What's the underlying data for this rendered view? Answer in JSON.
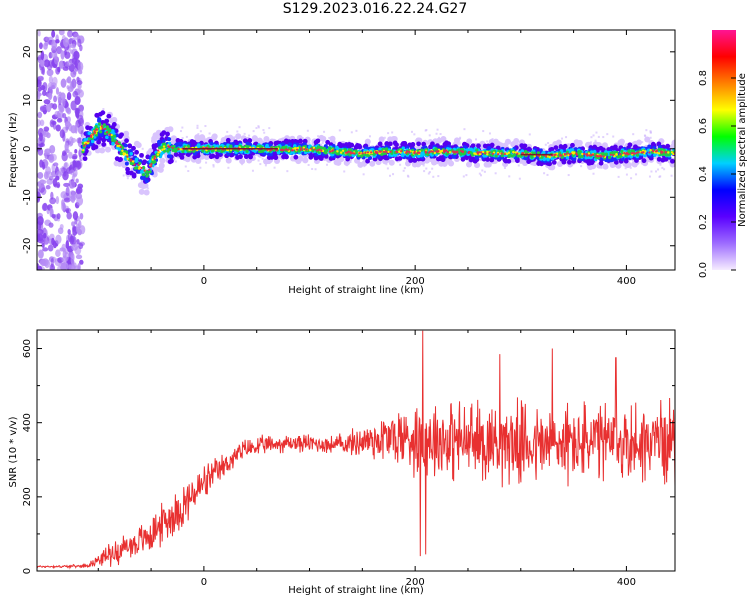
{
  "title": "S129.2023.016.22.24.G27",
  "colors": {
    "snr_line": "#e83030",
    "spectrogram_ridge": "#e03050",
    "spectrogram_core": "#22cc44",
    "spectrogram_halo": "#5500ee",
    "spectrogram_noise": "#8844ee"
  },
  "chart_data": [
    {
      "type": "heatmap",
      "xlabel": "Height of straight line (km)",
      "ylabel": "Frequency (Hz)",
      "xlim": [
        -158,
        446
      ],
      "ylim": [
        -25,
        24.5
      ],
      "xticks": [
        0,
        200,
        400
      ],
      "yticks": [
        -20,
        -10,
        0,
        10,
        20
      ],
      "grid": false,
      "signal_track": {
        "x": [
          -115,
          -105,
          -98,
          -90,
          -82,
          -75,
          -68,
          -60,
          -55,
          -50,
          -45,
          -40,
          -35,
          -30,
          -20,
          0,
          50,
          75,
          100,
          125,
          150,
          175,
          200,
          225,
          250,
          275,
          300,
          325,
          350,
          375,
          400,
          425,
          446
        ],
        "y": [
          0,
          3,
          4.5,
          3.5,
          1,
          -1,
          -2.5,
          -4,
          -5,
          -3.5,
          -1,
          0,
          0.3,
          0,
          0,
          0,
          0,
          -0.2,
          0,
          -0.5,
          -1,
          -0.5,
          -0.8,
          -0.5,
          -0.7,
          -1,
          -1,
          -1.5,
          -1,
          -1.5,
          -1,
          -0.5,
          -1
        ]
      },
      "noise_region_x": [
        -158,
        -115
      ],
      "colorbar": {
        "label": "Normalized spectral amplitude",
        "ticks": [
          0.0,
          0.2,
          0.4,
          0.6,
          0.8
        ],
        "range": [
          0,
          1
        ],
        "colormap": [
          "#f6ecff",
          "#9d6cff",
          "#5a00ff",
          "#0000ff",
          "#00d0ff",
          "#00ff00",
          "#ffff00",
          "#ff8000",
          "#ff0000",
          "#ff1493"
        ]
      }
    },
    {
      "type": "line",
      "xlabel": "Height of straight line (km)",
      "ylabel": "SNR (10 * v/v)",
      "xlim": [
        -158,
        446
      ],
      "ylim": [
        0,
        650
      ],
      "xticks": [
        0,
        200,
        400
      ],
      "yticks": [
        0,
        200,
        400,
        600
      ],
      "grid": false,
      "series": [
        {
          "x": [
            -158,
            -140,
            -120,
            -110,
            -100,
            -90,
            -80,
            -70,
            -60,
            -50,
            -40,
            -30,
            -20,
            -10,
            0,
            10,
            20,
            30,
            40,
            60,
            80,
            100,
            120,
            140,
            160,
            180,
            200,
            220,
            240,
            260,
            280,
            300,
            320,
            340,
            360,
            380,
            400,
            420,
            446
          ],
          "values": [
            12,
            12,
            13,
            15,
            30,
            45,
            55,
            70,
            80,
            100,
            125,
            150,
            175,
            205,
            235,
            260,
            285,
            310,
            330,
            340,
            345,
            345,
            340,
            345,
            355,
            360,
            360,
            360,
            350,
            350,
            350,
            345,
            340,
            345,
            345,
            345,
            345,
            350,
            355
          ],
          "spread": [
            3,
            3,
            4,
            5,
            15,
            30,
            35,
            40,
            45,
            50,
            55,
            60,
            60,
            60,
            50,
            40,
            35,
            30,
            28,
            25,
            25,
            25,
            25,
            35,
            60,
            80,
            100,
            110,
            110,
            110,
            110,
            110,
            110,
            110,
            110,
            110,
            110,
            110,
            110
          ],
          "peaks": [
            [
              207,
              648
            ],
            [
              205,
              40
            ],
            [
              210,
              45
            ],
            [
              280,
              585
            ],
            [
              390,
              575
            ],
            [
              330,
              600
            ]
          ]
        }
      ]
    }
  ]
}
